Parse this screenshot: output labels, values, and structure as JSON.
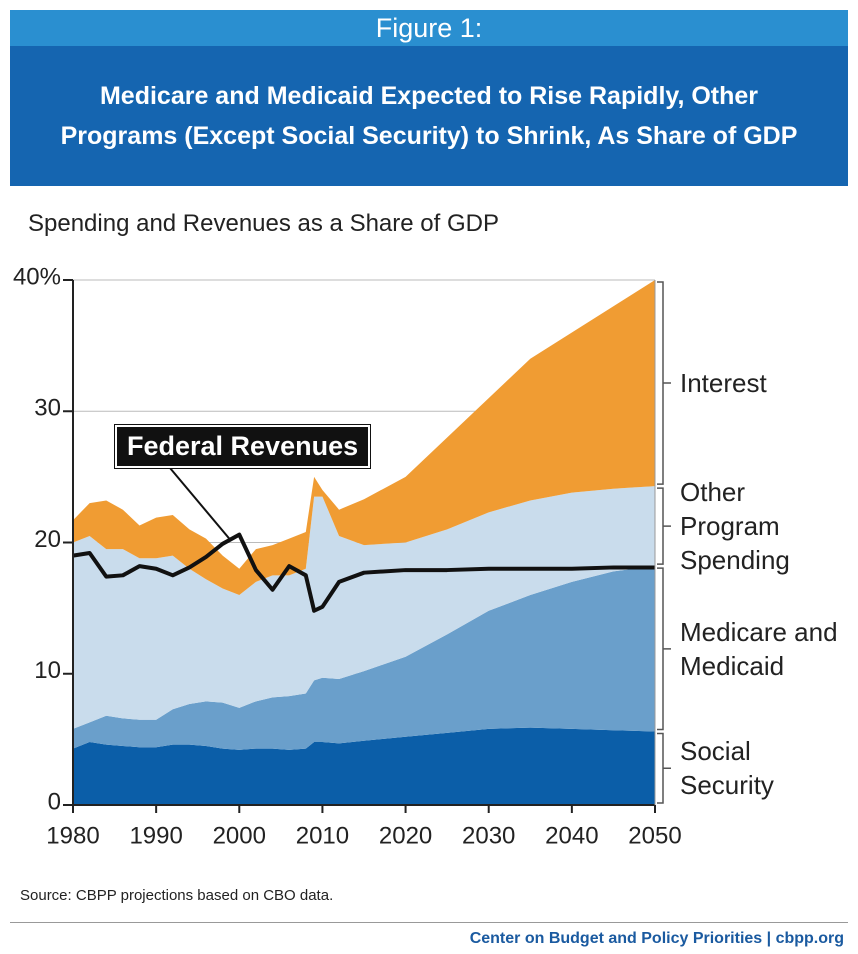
{
  "figure_label": "Figure 1:",
  "chart_data": {
    "type": "area",
    "stacked": true,
    "title": "Medicare and Medicaid Expected to Rise Rapidly, Other Programs (Except Social Security) to Shrink, As Share of GDP",
    "subtitle": "Spending and Revenues as a Share of GDP",
    "x": [
      1980,
      1982,
      1984,
      1986,
      1988,
      1990,
      1992,
      1994,
      1996,
      1998,
      2000,
      2002,
      2004,
      2006,
      2008,
      2009,
      2010,
      2012,
      2015,
      2020,
      2025,
      2030,
      2035,
      2040,
      2045,
      2050
    ],
    "xlim": [
      1980,
      2050
    ],
    "xticks": [
      1980,
      1990,
      2000,
      2010,
      2020,
      2030,
      2040,
      2050
    ],
    "ylim": [
      0,
      40
    ],
    "yticks": [
      0,
      10,
      20,
      30,
      {
        "value": 40,
        "label": "40%"
      }
    ],
    "grid": true,
    "series": [
      {
        "name": "Social Security",
        "color": "#0b5ea8",
        "values": [
          4.3,
          4.8,
          4.6,
          4.5,
          4.4,
          4.4,
          4.6,
          4.6,
          4.5,
          4.3,
          4.2,
          4.3,
          4.3,
          4.2,
          4.3,
          4.8,
          4.8,
          4.7,
          4.9,
          5.2,
          5.5,
          5.8,
          5.9,
          5.8,
          5.7,
          5.6
        ]
      },
      {
        "name": "Medicare and Medicaid",
        "color": "#6a9fcb",
        "values": [
          1.5,
          1.5,
          2.2,
          2.1,
          2.1,
          2.1,
          2.7,
          3.1,
          3.4,
          3.5,
          3.2,
          3.6,
          3.9,
          4.1,
          4.2,
          4.7,
          4.9,
          4.9,
          5.3,
          6.1,
          7.5,
          9.0,
          10.1,
          11.2,
          12.1,
          12.6
        ]
      },
      {
        "name": "Other Program Spending",
        "color": "#c9dcec",
        "values": [
          14.2,
          14.2,
          12.7,
          12.9,
          12.3,
          12.3,
          11.7,
          10.3,
          9.3,
          8.7,
          8.6,
          9.1,
          9.3,
          9.2,
          9.5,
          14.0,
          13.8,
          10.9,
          9.6,
          8.7,
          8.0,
          7.5,
          7.2,
          6.8,
          6.3,
          6.1
        ]
      },
      {
        "name": "Interest",
        "color": "#f09c33",
        "values": [
          1.7,
          2.5,
          3.7,
          3.0,
          2.5,
          3.1,
          3.1,
          3.0,
          3.1,
          2.5,
          2.0,
          2.5,
          2.3,
          2.8,
          2.8,
          1.5,
          0.5,
          2.0,
          3.5,
          5.0,
          7.0,
          8.7,
          10.8,
          12.2,
          13.9,
          15.7
        ]
      },
      {
        "name": "Federal Revenues",
        "type": "line",
        "color": "#111111",
        "values": [
          19,
          19.2,
          17.4,
          17.5,
          18.2,
          18,
          17.5,
          18.1,
          18.9,
          19.9,
          20.6,
          17.9,
          16.4,
          18.2,
          17.5,
          14.8,
          15.1,
          17,
          17.7,
          17.9,
          17.9,
          18,
          18,
          18,
          18.1,
          18.1
        ]
      }
    ],
    "source": "Source: CBPP projections based on CBO data.",
    "credit": "Center on Budget and Policy Priorities | cbpp.org"
  }
}
